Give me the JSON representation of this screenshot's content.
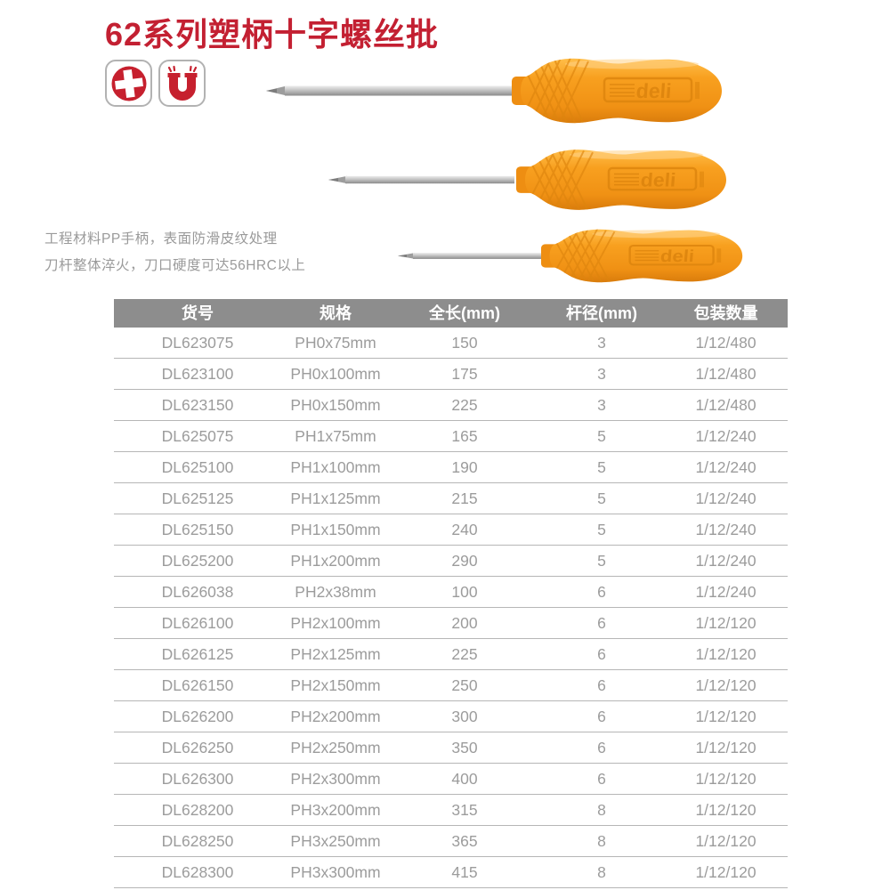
{
  "page": {
    "title": "62系列塑柄十字螺丝批",
    "description_lines": [
      "工程材料PP手柄，表面防滑皮纹处理",
      "刀杆整体淬火，刀口硬度可达56HRC以上"
    ],
    "brand": "deli"
  },
  "features": [
    {
      "icon": "phillips-cross-icon"
    },
    {
      "icon": "magnet-icon"
    }
  ],
  "product_images": [
    {
      "name": "screwdriver-large"
    },
    {
      "name": "screwdriver-medium"
    },
    {
      "name": "screwdriver-small"
    }
  ],
  "colors": {
    "accent_red": "#c32032",
    "handle_orange": "#f8a01f",
    "table_header_bg": "#8d8d8d",
    "table_text_gray": "#9c9c9c"
  },
  "table": {
    "headers": [
      "货号",
      "规格",
      "全长(mm)",
      "杆径(mm)",
      "包装数量"
    ],
    "rows": [
      [
        "DL623075",
        "PH0x75mm",
        "150",
        "3",
        "1/12/480"
      ],
      [
        "DL623100",
        "PH0x100mm",
        "175",
        "3",
        "1/12/480"
      ],
      [
        "DL623150",
        "PH0x150mm",
        "225",
        "3",
        "1/12/480"
      ],
      [
        "DL625075",
        "PH1x75mm",
        "165",
        "5",
        "1/12/240"
      ],
      [
        "DL625100",
        "PH1x100mm",
        "190",
        "5",
        "1/12/240"
      ],
      [
        "DL625125",
        "PH1x125mm",
        "215",
        "5",
        "1/12/240"
      ],
      [
        "DL625150",
        "PH1x150mm",
        "240",
        "5",
        "1/12/240"
      ],
      [
        "DL625200",
        "PH1x200mm",
        "290",
        "5",
        "1/12/240"
      ],
      [
        "DL626038",
        "PH2x38mm",
        "100",
        "6",
        "1/12/240"
      ],
      [
        "DL626100",
        "PH2x100mm",
        "200",
        "6",
        "1/12/120"
      ],
      [
        "DL626125",
        "PH2x125mm",
        "225",
        "6",
        "1/12/120"
      ],
      [
        "DL626150",
        "PH2x150mm",
        "250",
        "6",
        "1/12/120"
      ],
      [
        "DL626200",
        "PH2x200mm",
        "300",
        "6",
        "1/12/120"
      ],
      [
        "DL626250",
        "PH2x250mm",
        "350",
        "6",
        "1/12/120"
      ],
      [
        "DL626300",
        "PH2x300mm",
        "400",
        "6",
        "1/12/120"
      ],
      [
        "DL628200",
        "PH3x200mm",
        "315",
        "8",
        "1/12/120"
      ],
      [
        "DL628250",
        "PH3x250mm",
        "365",
        "8",
        "1/12/120"
      ],
      [
        "DL628300",
        "PH3x300mm",
        "415",
        "8",
        "1/12/120"
      ]
    ]
  }
}
